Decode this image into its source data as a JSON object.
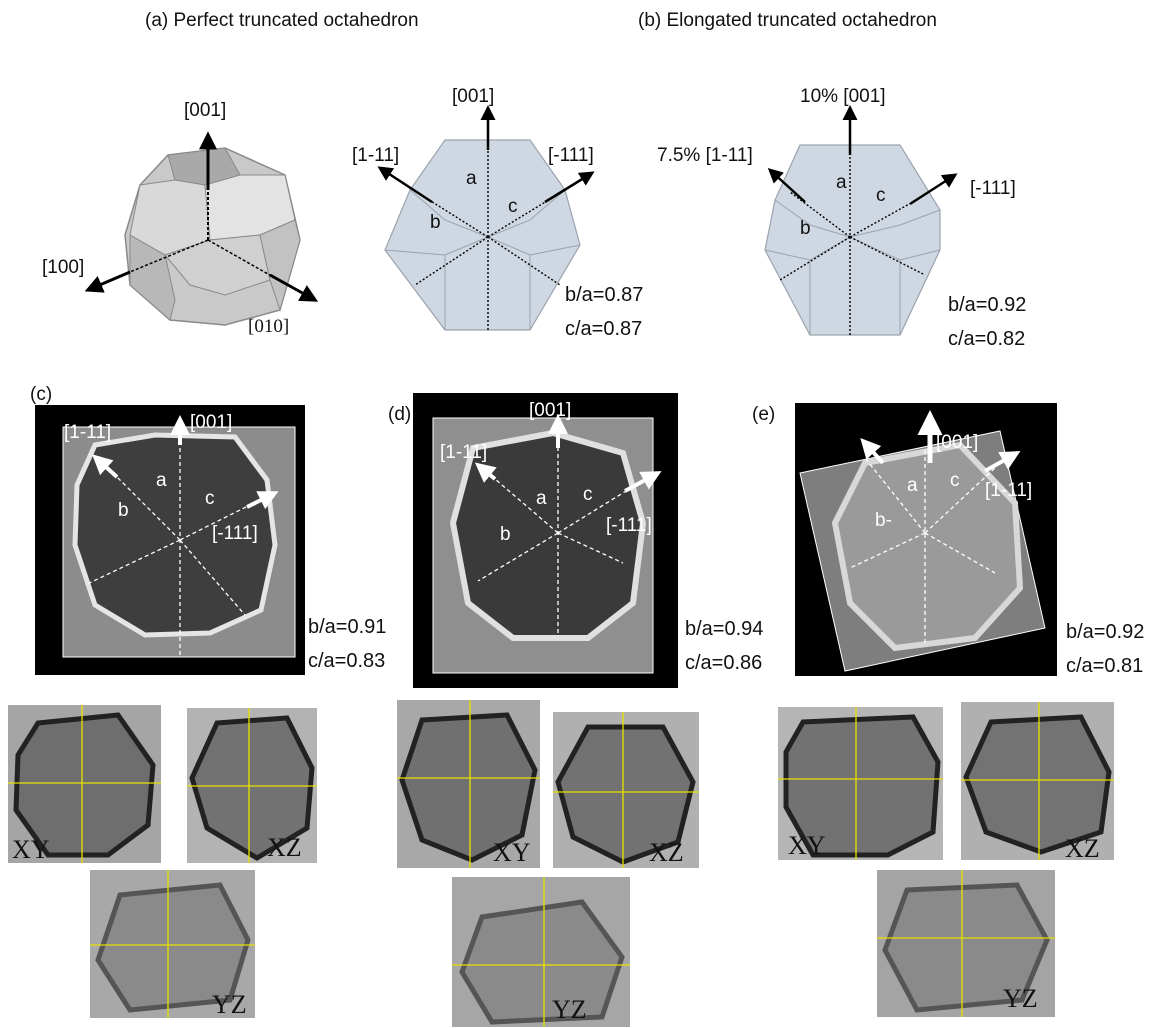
{
  "titles": {
    "a": "(a) Perfect truncated octahedron",
    "b": "(b) Elongated truncated octahedron"
  },
  "panel_a": {
    "axis3d": {
      "z": "[001]",
      "x": "[100]",
      "y": "[010]"
    },
    "axes": {
      "up": "[001]",
      "left": "[1-11]",
      "right": "[-111]"
    },
    "faces": {
      "a": "a",
      "b": "b",
      "c": "c"
    },
    "ratios": {
      "b_a": "b/a=0.87",
      "c_a": "c/a=0.87"
    }
  },
  "panel_b": {
    "axes": {
      "up": "10% [001]",
      "left": "7.5% [1-11]",
      "right": "[-111]"
    },
    "faces": {
      "a": "a",
      "b": "b",
      "c": "c"
    },
    "ratios": {
      "b_a": "b/a=0.92",
      "c_a": "c/a=0.82"
    }
  },
  "panel_c": {
    "label": "(c)",
    "axes": {
      "up": "[001]",
      "left": "[1-11]",
      "right": "[-111]"
    },
    "faces": {
      "a": "a",
      "b": "b",
      "c": "c"
    },
    "ratios": {
      "b_a": "b/a=0.91",
      "c_a": "c/a=0.83"
    },
    "slices": {
      "xy": "XY",
      "xz": "XZ",
      "yz": "YZ"
    }
  },
  "panel_d": {
    "label": "(d)",
    "axes": {
      "up": "[001]",
      "left": "[1-11]",
      "right": "[-111]"
    },
    "faces": {
      "a": "a",
      "b": "b",
      "c": "c"
    },
    "ratios": {
      "b_a": "b/a=0.94",
      "c_a": "c/a=0.86"
    },
    "slices": {
      "xy": "XY",
      "xz": "XZ",
      "yz": "YZ"
    }
  },
  "panel_e": {
    "label": "(e)",
    "axes": {
      "up": "[001]",
      "right": "[1-11]"
    },
    "faces": {
      "a": "a",
      "b": "b-",
      "c": "c"
    },
    "ratios": {
      "b_a": "b/a=0.92",
      "c_a": "c/a=0.81"
    },
    "slices": {
      "xy": "XY",
      "xz": "XZ",
      "yz": "YZ"
    }
  },
  "colors": {
    "face_fill": "#cfd8e2",
    "edge": "#9aa3ad",
    "crosshair": "#e8e000",
    "tomo_bg": "#000000"
  }
}
